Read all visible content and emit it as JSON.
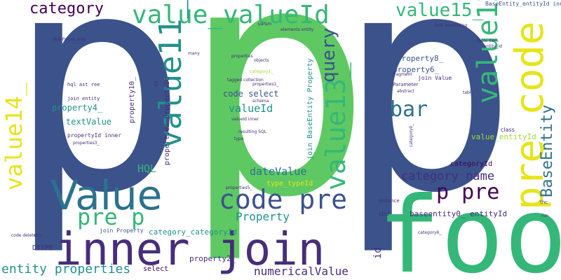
{
  "palette": {
    "navy": "#3b528b",
    "teal": "#21918c",
    "green": "#5ec962",
    "sea": "#35b779",
    "purple": "#472d7b",
    "deep": "#440154",
    "cyan": "#2c728e",
    "yellow": "#e7e419",
    "lime": "#a0da39",
    "mint": "#1fa187"
  },
  "words": {
    "p1": "p",
    "p2": "p",
    "p3": "p",
    "foo": "foo",
    "value": "Value",
    "inner_join": "inner join",
    "pre_code": "pre code",
    "value_valueid": "value_valueId",
    "value12": "value12_",
    "value11": "value11_",
    "value13": "value13_",
    "value14": "value14_",
    "value15": "value15_",
    "code_pre": "code pre",
    "pre_p": "pre p",
    "p_pre": "p pre",
    "bar": "bar",
    "category": "category",
    "query": "query",
    "baseentity": "BaseEntity",
    "category_name": "category name",
    "entity_properties": "entity properties",
    "numericalvalue": "numericalValue",
    "property": "Property",
    "datevalue": "dateValue",
    "valueid": "valueId",
    "code_select": "code select",
    "hql": "HQL",
    "textvalue": "textValue",
    "property4": "property4_",
    "property8": "property8_",
    "property6": "property6_",
    "categoryid": "categoryId",
    "category_categoryid": "category_categoryId",
    "baseentity0_entityid": "baseentity0_ entityId",
    "value_entityid": "value_entityId",
    "property2": "property2_",
    "dtype": "DTYPE",
    "select": "select",
    "type_typeid": "type_typeId",
    "properties_propertyid": "properties_propertyId",
    "join_baseentity_property": "join BaseEntity Property",
    "property10": "property10_",
    "join_value": "join Value",
    "baseentity_entityid_inner": "BaseEntity_entityId inner",
    "id": "id",
    "class": "class",
    "join_property": "join Property",
    "propertyid_inner": "propertyId inner",
    "join_entity": "join entity",
    "hql_ast_tree": "hql ast  ree",
    "parameter": "Parameter",
    "cbd": "cbd",
    "instance": "instance",
    "valueid_inner": "valueId inner",
    "properties_small": "properties",
    "properties1": "properties1_",
    "properties3": "properties3_",
    "properties5": "properties5_",
    "category1": "category1_",
    "category0": "category0_",
    "category6": "category6_",
    "rolepermsamp": "RolePerms amp",
    "run": "run",
    "thc": "thc",
    "tabl": "tabl",
    "cbn": "cbn",
    "code_delete": "code delete",
    "h3": "h3",
    "param": "param",
    "elements_entity": "elements entity",
    "fragment": "fragment",
    "tagged_collection": "tagged collection",
    "objects": "objects",
    "schema": "schema",
    "resulting_sql": "resulting SQL",
    "type": "type",
    "many": "many",
    "abstract": "abstract",
    "look_something": "look something",
    "table_item": "table item",
    "entity_id": "entity_id"
  }
}
